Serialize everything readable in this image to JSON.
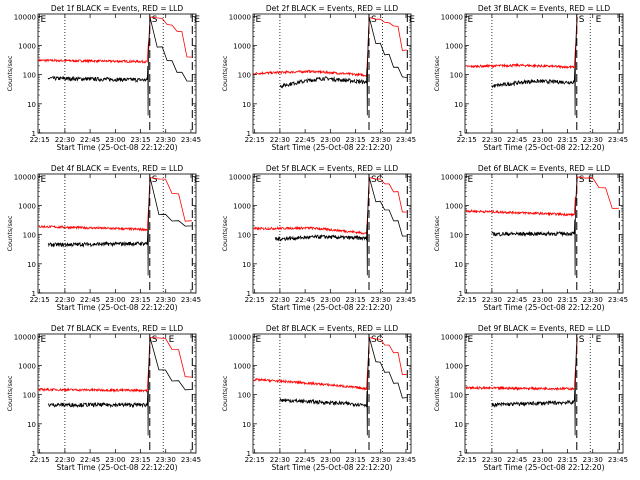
{
  "shared": {
    "xlabel": "Start Time (25-Oct-08 22:12:20)",
    "ylabel": "Counts/sec",
    "x_ticks": [
      "22:15",
      "22:30",
      "22:45",
      "23:00",
      "23:15",
      "23:30",
      "23:45"
    ],
    "x_tick_minutes": [
      15,
      30,
      45,
      60,
      75,
      90,
      105
    ],
    "x_range_minutes": [
      14,
      108
    ],
    "y_ticks": [
      "1",
      "10",
      "100",
      "1000",
      "10000"
    ],
    "y_tick_values": [
      1,
      10,
      100,
      1000,
      10000
    ],
    "y_range": [
      1,
      12000
    ],
    "y_scale": "log",
    "colors": {
      "events": "#000000",
      "lld": "#ff0000"
    },
    "markers": {
      "start": "S",
      "end": "E",
      "center": "C"
    }
  },
  "chart_data": [
    {
      "type": "line",
      "title": "Det 1f BLACK = Events, RED = LLD",
      "markers": [
        "E",
        "S",
        "E"
      ],
      "marker_min": [
        14.3,
        80.5,
        105.8
      ],
      "events": {
        "start": 20,
        "level": 75,
        "pre": 66,
        "peak_end": 90,
        "tail": [
          900,
          300,
          120,
          60
        ]
      },
      "lld": {
        "level": 310,
        "end_level": 280,
        "peak": 9500,
        "tail": [
          8500,
          5000,
          3000,
          400
        ]
      }
    },
    {
      "type": "line",
      "title": "Det 2f BLACK = Events, RED = LLD",
      "markers": [
        "E",
        "S",
        "E"
      ],
      "marker_min": [
        14.3,
        83.0,
        105.8
      ],
      "events": {
        "start": 30,
        "level": 40,
        "mid": 75,
        "pre": 55,
        "peak_end": 92,
        "tail": [
          1200,
          500,
          180,
          80
        ]
      },
      "lld": {
        "level": 110,
        "mid": 130,
        "end_level": 95,
        "peak": 9000,
        "tail": [
          8000,
          6000,
          4500,
          700
        ]
      }
    },
    {
      "type": "line",
      "title": "Det 3f BLACK = Events, RED = LLD",
      "markers": [
        "E",
        "S",
        "E"
      ],
      "marker_min": [
        14.3,
        80.5,
        90.5
      ],
      "events": {
        "start": 30,
        "level": 40,
        "mid": 60,
        "pre": 55,
        "peak_end": 79,
        "tail": []
      },
      "lld": {
        "level": 190,
        "mid": 210,
        "end_level": 180,
        "peak": 9500,
        "tail": []
      }
    },
    {
      "type": "line",
      "title": "Det 4f BLACK = Events, RED = LLD",
      "markers": [
        "E",
        "S",
        "E"
      ],
      "marker_min": [
        14.3,
        80.5,
        105.8
      ],
      "events": {
        "start": 20,
        "level": 45,
        "pre": 50,
        "peak_end": 78,
        "tail": [
          500,
          300,
          200
        ]
      },
      "lld": {
        "level": 190,
        "end_level": 150,
        "peak": 9000,
        "tail": [
          8000,
          2500,
          300
        ]
      }
    },
    {
      "type": "line",
      "title": "Det 5f BLACK = Events, RED = LLD",
      "markers": [
        "E",
        "S",
        "C"
      ],
      "marker_min": [
        14.3,
        83.0,
        86.2
      ],
      "events": {
        "start": 27,
        "level": 70,
        "mid": 85,
        "pre": 75,
        "peak_end": 92,
        "tail": [
          1400,
          700,
          300,
          90
        ]
      },
      "lld": {
        "level": 160,
        "mid": 170,
        "end_level": 110,
        "peak": 9000,
        "tail": [
          8200,
          5500,
          3000,
          600
        ]
      }
    },
    {
      "type": "line",
      "title": "Det 6f BLACK = Events, RED = LLD",
      "markers": [
        "E",
        "S",
        "E"
      ],
      "marker_min": [
        14.3,
        80.5,
        86.0
      ],
      "events": {
        "start": 30,
        "level": 105,
        "pre": 110,
        "peak_end": 79,
        "tail": []
      },
      "lld": {
        "level": 650,
        "end_level": 480,
        "peak": 9500,
        "tail": [
          9000,
          4000,
          800
        ]
      }
    },
    {
      "type": "line",
      "title": "Det 7f BLACK = Events, RED = LLD",
      "markers": [
        "E",
        "S",
        "E"
      ],
      "marker_min": [
        14.3,
        80.5,
        90.5
      ],
      "events": {
        "start": 20,
        "level": 45,
        "pre": 45,
        "peak_end": 79,
        "tail": [
          700,
          300,
          150
        ]
      },
      "lld": {
        "level": 150,
        "end_level": 140,
        "peak": 9000,
        "tail": [
          8500,
          3500,
          400
        ]
      }
    },
    {
      "type": "line",
      "title": "Det 8f BLACK = Events, RED = LLD",
      "markers": [
        "E",
        "S",
        "C"
      ],
      "marker_min": [
        14.3,
        83.0,
        86.2
      ],
      "events": {
        "start": 30,
        "level": 65,
        "pre": 45,
        "peak_end": 92,
        "tail": [
          1300,
          600,
          250,
          80
        ]
      },
      "lld": {
        "level": 330,
        "end_level": 160,
        "peak": 9000,
        "tail": [
          8000,
          5000,
          2800,
          500
        ]
      }
    },
    {
      "type": "line",
      "title": "Det 9f BLACK = Events, RED = LLD",
      "markers": [
        "E",
        "S",
        "E"
      ],
      "marker_min": [
        14.3,
        80.5,
        90.5
      ],
      "events": {
        "start": 30,
        "level": 45,
        "pre": 55,
        "peak_end": 79,
        "tail": []
      },
      "lld": {
        "level": 170,
        "end_level": 160,
        "peak": 9000,
        "tail": []
      }
    }
  ]
}
